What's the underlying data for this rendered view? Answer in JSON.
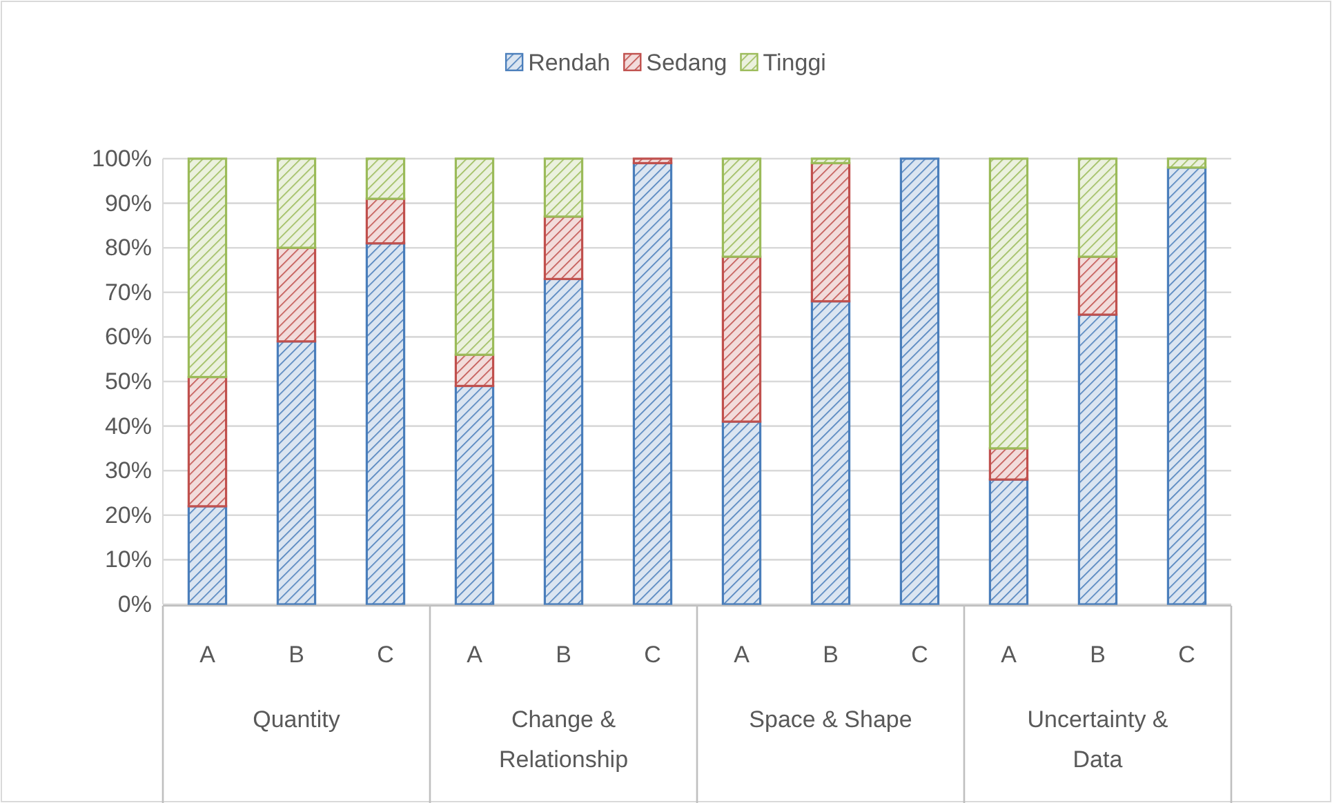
{
  "chart_data": {
    "type": "bar",
    "stacked": true,
    "legend": "top",
    "grid": "y",
    "categories": [
      "A",
      "B",
      "C",
      "A",
      "B",
      "C",
      "A",
      "B",
      "C",
      "A",
      "B",
      "C"
    ],
    "series": [
      {
        "name": "Rendah",
        "color": "#4a7ebb",
        "values": [
          22,
          59,
          81,
          49,
          73,
          99,
          41,
          68,
          100,
          28,
          65,
          98
        ]
      },
      {
        "name": "Sedang",
        "color": "#c0504d",
        "values": [
          29,
          21,
          10,
          7,
          14,
          1,
          37,
          31,
          0,
          7,
          13,
          0
        ]
      },
      {
        "name": "Tinggi",
        "color": "#9bbb59",
        "values": [
          49,
          20,
          9,
          44,
          13,
          0,
          22,
          1,
          0,
          65,
          22,
          2
        ]
      }
    ],
    "ylim": [
      0,
      100
    ],
    "yticks": [
      {
        "value": 0,
        "label": "0%"
      },
      {
        "value": 10,
        "label": "10%"
      },
      {
        "value": 20,
        "label": "20%"
      },
      {
        "value": 30,
        "label": "30%"
      },
      {
        "value": 40,
        "label": "40%"
      },
      {
        "value": 50,
        "label": "50%"
      },
      {
        "value": 60,
        "label": "60%"
      },
      {
        "value": 70,
        "label": "70%"
      },
      {
        "value": 80,
        "label": "80%"
      },
      {
        "value": 90,
        "label": "90%"
      },
      {
        "value": 100,
        "label": "100%"
      }
    ],
    "annotations": [
      "Quantity",
      "Change & Relationship",
      "Space & Shape",
      "Uncertainty & Data"
    ]
  }
}
